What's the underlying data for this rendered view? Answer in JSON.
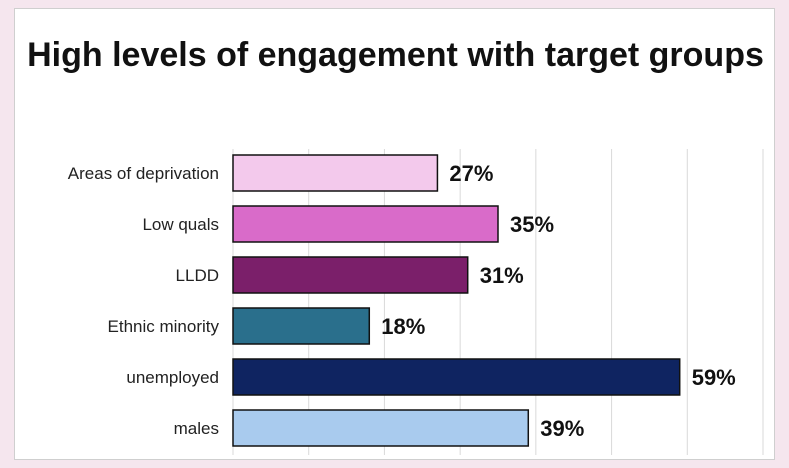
{
  "chart_data": {
    "type": "bar",
    "orientation": "horizontal",
    "title": "High levels of engagement with target groups",
    "categories": [
      "Areas of deprivation",
      "Low quals",
      "LLDD",
      "Ethnic minority",
      "unemployed",
      "males"
    ],
    "values": [
      27,
      35,
      31,
      18,
      59,
      39
    ],
    "value_labels": [
      "27%",
      "35%",
      "31%",
      "18%",
      "59%",
      "39%"
    ],
    "bar_colors": [
      "#f3c9ec",
      "#d96bc9",
      "#7b1f6a",
      "#2a6f8c",
      "#0f2461",
      "#a9cbee"
    ],
    "xlim": [
      0,
      70
    ],
    "xlabel": "",
    "ylabel": "",
    "grid": true,
    "legend": "none"
  }
}
